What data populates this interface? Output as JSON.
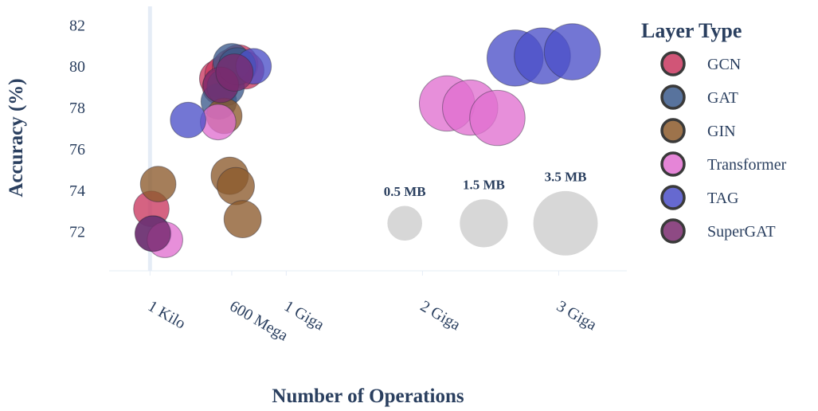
{
  "chart_data": {
    "type": "scatter",
    "xlabel": "Number of Operations",
    "ylabel": "Accuracy (%)",
    "xlim": [
      -300000000,
      3500000000
    ],
    "ylim": [
      70.1,
      82.9
    ],
    "x_ticks": [
      {
        "value": 0,
        "label": "1 Kilo"
      },
      {
        "value": 600000000,
        "label": "600 Mega"
      },
      {
        "value": 1000000000,
        "label": "1 Giga"
      },
      {
        "value": 2000000000,
        "label": "2 Giga"
      },
      {
        "value": 3000000000,
        "label": "3 Giga"
      }
    ],
    "y_ticks": [
      72,
      74,
      76,
      78,
      80,
      82
    ],
    "grid": false,
    "legend": {
      "title": "Layer Type",
      "placement": "right"
    },
    "series": [
      {
        "name": "GCN",
        "color": "#c9375f",
        "points": [
          {
            "x": 10000000,
            "y": 73.1,
            "size_mb": 0.5
          },
          {
            "x": 500000000,
            "y": 79.4,
            "size_mb": 0.6
          },
          {
            "x": 540000000,
            "y": 79.6,
            "size_mb": 0.6
          },
          {
            "x": 600000000,
            "y": 79.9,
            "size_mb": 0.7
          },
          {
            "x": 650000000,
            "y": 80.1,
            "size_mb": 0.7
          },
          {
            "x": 700000000,
            "y": 79.8,
            "size_mb": 0.6
          },
          {
            "x": 515000000,
            "y": 79.0,
            "size_mb": 0.5
          }
        ]
      },
      {
        "name": "GAT",
        "color": "#3b5a8c",
        "points": [
          {
            "x": 25000000,
            "y": 71.9,
            "size_mb": 0.5
          },
          {
            "x": 505000000,
            "y": 78.3,
            "size_mb": 0.5
          },
          {
            "x": 555000000,
            "y": 79.0,
            "size_mb": 0.6
          },
          {
            "x": 600000000,
            "y": 80.2,
            "size_mb": 0.6
          },
          {
            "x": 640000000,
            "y": 80.0,
            "size_mb": 0.6
          }
        ]
      },
      {
        "name": "GIN",
        "color": "#8c5a2b",
        "points": [
          {
            "x": 60000000,
            "y": 74.3,
            "size_mb": 0.5
          },
          {
            "x": 545000000,
            "y": 77.6,
            "size_mb": 0.5
          },
          {
            "x": 585000000,
            "y": 74.7,
            "size_mb": 0.6
          },
          {
            "x": 630000000,
            "y": 74.2,
            "size_mb": 0.6
          },
          {
            "x": 680000000,
            "y": 72.6,
            "size_mb": 0.6
          }
        ]
      },
      {
        "name": "Transformer",
        "color": "#e070d0",
        "points": [
          {
            "x": 110000000,
            "y": 71.6,
            "size_mb": 0.5
          },
          {
            "x": 500000000,
            "y": 77.3,
            "size_mb": 0.5
          },
          {
            "x": 2180000000,
            "y": 78.2,
            "size_mb": 2.2
          },
          {
            "x": 2350000000,
            "y": 78.0,
            "size_mb": 2.2
          },
          {
            "x": 2550000000,
            "y": 77.5,
            "size_mb": 2.2
          }
        ]
      },
      {
        "name": "TAG",
        "color": "#4b4fc8",
        "points": [
          {
            "x": 280000000,
            "y": 77.4,
            "size_mb": 0.5
          },
          {
            "x": 760000000,
            "y": 80.0,
            "size_mb": 0.5
          },
          {
            "x": 2680000000,
            "y": 80.4,
            "size_mb": 2.3
          },
          {
            "x": 2880000000,
            "y": 80.5,
            "size_mb": 2.3
          },
          {
            "x": 3100000000,
            "y": 80.7,
            "size_mb": 2.3
          }
        ]
      },
      {
        "name": "SuperGAT",
        "color": "#7a2a6e",
        "points": [
          {
            "x": 20000000,
            "y": 71.9,
            "size_mb": 0.5
          },
          {
            "x": 520000000,
            "y": 79.1,
            "size_mb": 0.5
          },
          {
            "x": 620000000,
            "y": 79.7,
            "size_mb": 0.6
          }
        ]
      }
    ],
    "size_legend": [
      {
        "label": "0.5 MB",
        "size_mb": 0.5,
        "x": 1870000000,
        "y": 72.4
      },
      {
        "label": "1.5 MB",
        "size_mb": 1.5,
        "x": 2450000000,
        "y": 72.4
      },
      {
        "label": "3.5 MB",
        "size_mb": 3.5,
        "x": 3050000000,
        "y": 72.4
      }
    ]
  }
}
